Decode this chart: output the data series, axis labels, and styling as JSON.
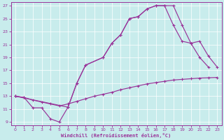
{
  "xlabel": "Windchill (Refroidissement éolien,°C)",
  "bg_color": "#c8ecec",
  "line_color": "#993399",
  "xlim": [
    -0.5,
    23.5
  ],
  "ylim": [
    8.5,
    27.5
  ],
  "xticks": [
    0,
    1,
    2,
    3,
    4,
    5,
    6,
    7,
    8,
    9,
    10,
    11,
    12,
    13,
    14,
    15,
    16,
    17,
    18,
    19,
    20,
    21,
    22,
    23
  ],
  "yticks": [
    9,
    11,
    13,
    15,
    17,
    19,
    21,
    23,
    25,
    27
  ],
  "line1_x": [
    0,
    1,
    2,
    3,
    4,
    5,
    6,
    7,
    8,
    10,
    11,
    12,
    13,
    14,
    15,
    16,
    17,
    18,
    19,
    20,
    21,
    22
  ],
  "line1_y": [
    13,
    12.8,
    11.2,
    11.2,
    9.5,
    9.0,
    11.3,
    15.0,
    17.8,
    19.0,
    21.2,
    22.5,
    25.0,
    25.3,
    26.5,
    27.0,
    27.0,
    27.0,
    24.0,
    21.2,
    19.0,
    17.5
  ],
  "line2_x": [
    0,
    1,
    2,
    3,
    4,
    5,
    6,
    7,
    8,
    9,
    10,
    11,
    12,
    13,
    14,
    15,
    16,
    17,
    18,
    19,
    20,
    21,
    22,
    23
  ],
  "line2_y": [
    13,
    12.8,
    12.4,
    12.1,
    11.8,
    11.5,
    11.8,
    12.2,
    12.6,
    13.0,
    13.3,
    13.6,
    14.0,
    14.3,
    14.6,
    14.9,
    15.1,
    15.3,
    15.5,
    15.6,
    15.7,
    15.8,
    15.85,
    15.9
  ],
  "line3_x": [
    0,
    6,
    7,
    8,
    10,
    11,
    12,
    13,
    14,
    15,
    16,
    17,
    18,
    19,
    20,
    21,
    22,
    23
  ],
  "line3_y": [
    13,
    11.3,
    15.0,
    17.8,
    19.0,
    21.2,
    22.5,
    25.0,
    25.3,
    26.5,
    27.0,
    27.0,
    24.0,
    21.5,
    21.2,
    21.5,
    19.2,
    17.5
  ]
}
